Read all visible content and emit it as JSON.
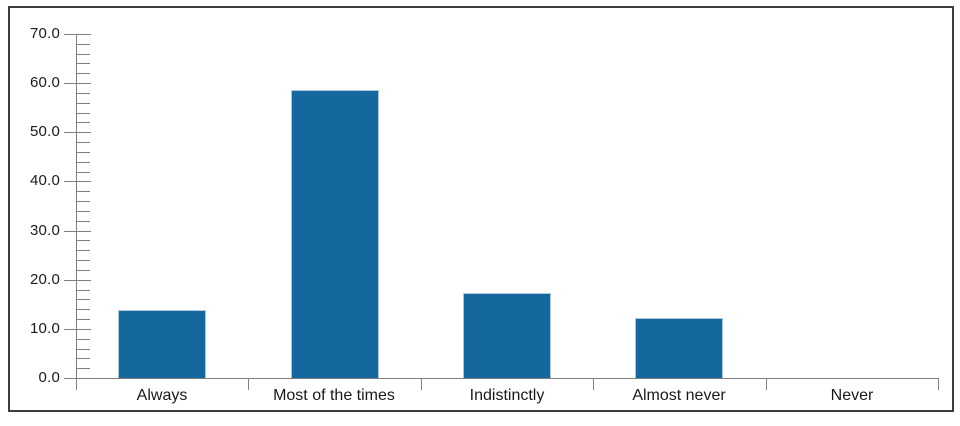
{
  "figure": {
    "background": "#ffffff",
    "border_color": "#3d3d3d"
  },
  "chart_data": {
    "type": "bar",
    "title": "",
    "xlabel": "",
    "ylabel": "",
    "categories": [
      "Always",
      "Most of the times",
      "Indistinctly",
      "Almost never",
      "Never"
    ],
    "values": [
      13.9,
      58.6,
      17.2,
      12.3,
      0.0
    ],
    "ylim": [
      0,
      70
    ],
    "ytick_step": 10,
    "yminor_step": 2,
    "ytick_labels": [
      "0.0",
      "10.0",
      "20.0",
      "30.0",
      "40.0",
      "50.0",
      "60.0",
      "70.0"
    ],
    "grid": false,
    "legend": false,
    "colors": {
      "bar_fill": "#15689E",
      "bar_edge": "#AEC8DB",
      "axis": "#808080",
      "text": "#1A1A1A",
      "frame": "#3D3D3D"
    }
  }
}
